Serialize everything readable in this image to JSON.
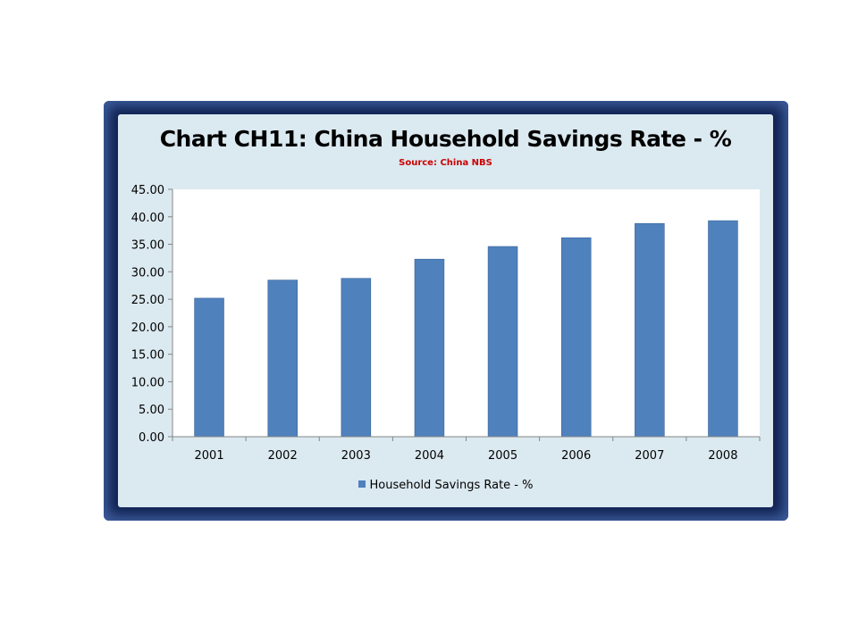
{
  "chart_data": {
    "type": "bar",
    "title": "Chart CH11: China Household Savings Rate - %",
    "subtitle": "Source: China NBS",
    "categories": [
      "2001",
      "2002",
      "2003",
      "2004",
      "2005",
      "2006",
      "2007",
      "2008"
    ],
    "series": [
      {
        "name": "Household Savings Rate - %",
        "values": [
          25.2,
          28.5,
          28.8,
          32.3,
          34.6,
          36.2,
          38.8,
          39.3
        ],
        "color": "#4f81bd"
      }
    ],
    "ylim": [
      0,
      45
    ],
    "yticks": [
      "0.00",
      "5.00",
      "10.00",
      "15.00",
      "20.00",
      "25.00",
      "30.00",
      "35.00",
      "40.00",
      "45.00"
    ],
    "grid": false,
    "legend": "bottom"
  }
}
